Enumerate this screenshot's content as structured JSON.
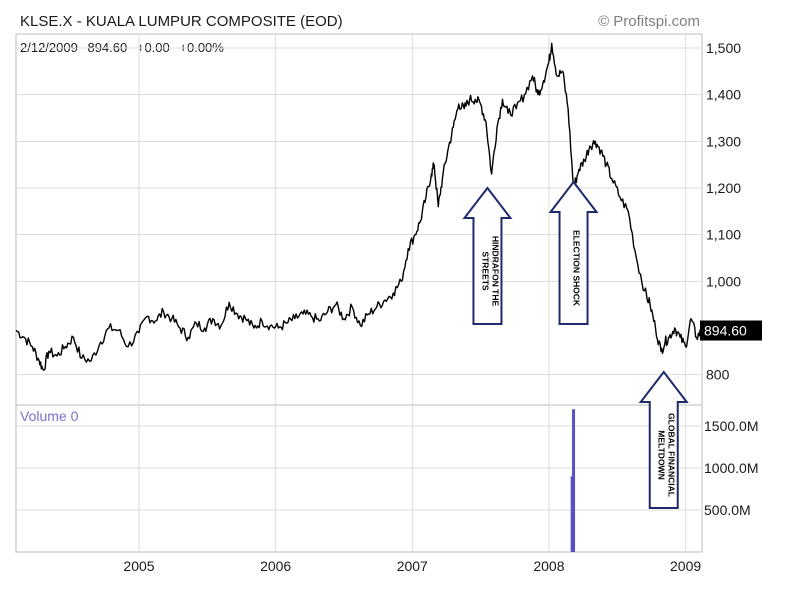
{
  "chart_data": {
    "type": "line",
    "title": "KLSE.X - KUALA LUMPUR COMPOSITE (EOD)",
    "credit": "© Profitspi.com",
    "quote": {
      "date": "2/12/2009",
      "last": "894.60",
      "change": "+0.00",
      "change_pct": "+0.00%"
    },
    "last_value_label": "894.60",
    "x_tick_labels": [
      "2005",
      "2006",
      "2007",
      "2008",
      "2009"
    ],
    "x_ticks": [
      2005.0,
      2006.0,
      2007.0,
      2008.0,
      2009.0
    ],
    "xlim": [
      2004.1,
      2009.12
    ],
    "ylim": [
      735,
      1530
    ],
    "y_ticks": [
      800,
      1000,
      1100,
      1200,
      1300,
      1400,
      1500
    ],
    "y_tick_labels": [
      "800",
      "1,000",
      "1,100",
      "1,200",
      "1,300",
      "1,400",
      "1,500"
    ],
    "grid": true,
    "series": [
      {
        "x": [
          2004.1,
          2004.16,
          2004.22,
          2004.27,
          2004.3,
          2004.34,
          2004.4,
          2004.46,
          2004.52,
          2004.58,
          2004.65,
          2004.72,
          2004.78,
          2004.85,
          2004.92,
          2005.0,
          2005.06,
          2005.12,
          2005.18,
          2005.24,
          2005.3,
          2005.36,
          2005.42,
          2005.48,
          2005.54,
          2005.6,
          2005.66,
          2005.72,
          2005.78,
          2005.84,
          2005.9,
          2005.96,
          2006.02,
          2006.08,
          2006.14,
          2006.2,
          2006.26,
          2006.32,
          2006.38,
          2006.44,
          2006.5,
          2006.56,
          2006.62,
          2006.68,
          2006.74,
          2006.8,
          2006.86,
          2006.92,
          2006.97,
          2007.02,
          2007.06,
          2007.1,
          2007.14,
          2007.16,
          2007.19,
          2007.22,
          2007.26,
          2007.3,
          2007.34,
          2007.38,
          2007.42,
          2007.46,
          2007.5,
          2007.54,
          2007.58,
          2007.62,
          2007.66,
          2007.7,
          2007.76,
          2007.82,
          2007.88,
          2007.92,
          2007.96,
          2008.0,
          2008.02,
          2008.06,
          2008.1,
          2008.14,
          2008.18,
          2008.22,
          2008.26,
          2008.3,
          2008.34,
          2008.38,
          2008.42,
          2008.46,
          2008.52,
          2008.58,
          2008.64,
          2008.7,
          2008.74,
          2008.78,
          2008.82,
          2008.85,
          2008.88,
          2008.92,
          2008.96,
          2009.0,
          2009.04,
          2009.08,
          2009.12
        ],
        "y": [
          895,
          880,
          860,
          830,
          810,
          850,
          840,
          860,
          880,
          835,
          830,
          870,
          900,
          895,
          860,
          890,
          925,
          915,
          935,
          920,
          900,
          880,
          910,
          900,
          920,
          905,
          955,
          930,
          920,
          900,
          915,
          905,
          900,
          910,
          920,
          930,
          925,
          915,
          935,
          950,
          920,
          945,
          905,
          930,
          945,
          960,
          975,
          1000,
          1070,
          1100,
          1130,
          1180,
          1230,
          1250,
          1160,
          1220,
          1280,
          1330,
          1380,
          1370,
          1390,
          1390,
          1380,
          1340,
          1230,
          1330,
          1390,
          1360,
          1370,
          1400,
          1440,
          1400,
          1430,
          1470,
          1510,
          1440,
          1450,
          1370,
          1200,
          1240,
          1260,
          1290,
          1300,
          1280,
          1250,
          1220,
          1180,
          1150,
          1050,
          980,
          950,
          900,
          850,
          870,
          880,
          900,
          880,
          860,
          920,
          880,
          895
        ]
      }
    ],
    "annotations": [
      {
        "text": [
          "HINDRAFON THE",
          "STREETS"
        ],
        "x": 2007.55,
        "direction": "up"
      },
      {
        "text": [
          "ELECTION SHOCK"
        ],
        "x": 2008.18,
        "direction": "up"
      },
      {
        "text": [
          "GLOBAL FINANCIAL",
          "MELTDOWN"
        ],
        "x": 2008.84,
        "direction": "up"
      }
    ],
    "volume": {
      "label": "Volume 0",
      "y_ticks": [
        500,
        1000,
        1500
      ],
      "y_tick_labels": [
        "500.0M",
        "1000.0M",
        "1500.0M"
      ],
      "ylim": [
        0,
        1750
      ],
      "bars": [
        {
          "x": 2008.18,
          "value": 1700
        },
        {
          "x": 2008.17,
          "value": 900
        }
      ],
      "color": "#5b4fc9"
    }
  }
}
